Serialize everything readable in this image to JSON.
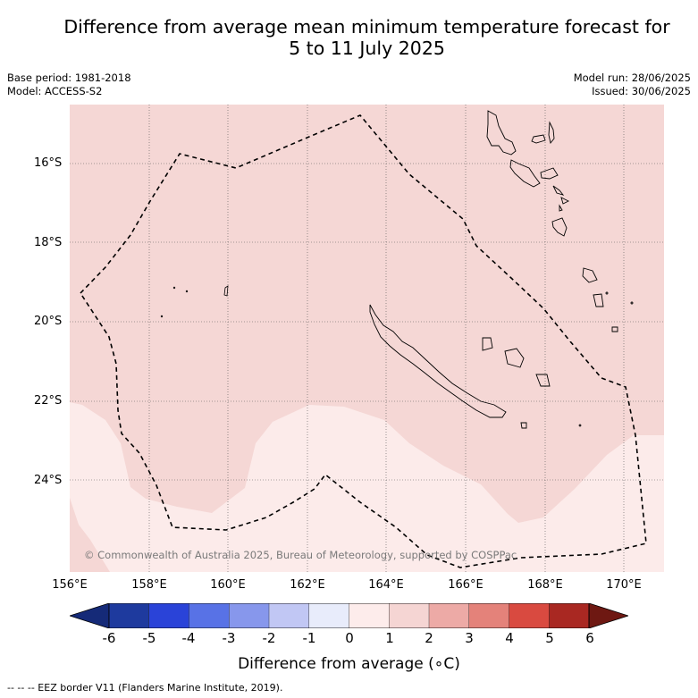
{
  "title_line1": "Difference from average mean minimum temperature forecast for",
  "title_line2": "5 to 11 July 2025",
  "base_period": "Base period: 1981-2018",
  "model": "Model: ACCESS-S2",
  "model_run": "Model run: 28/06/2025",
  "issued": "Issued: 30/06/2025",
  "lat_labels": [
    "16°S",
    "18°S",
    "20°S",
    "22°S",
    "24°S"
  ],
  "lon_labels": [
    "156°E",
    "158°E",
    "160°E",
    "162°E",
    "164°E",
    "166°E",
    "168°E",
    "170°E"
  ],
  "copyright": "© Commonwealth of Australia 2025, Bureau of Meteorology, supported by COSPPac",
  "colorbar": {
    "ticks": [
      "-6",
      "-5",
      "-4",
      "-3",
      "-2",
      "-1",
      "0",
      "1",
      "2",
      "3",
      "4",
      "5",
      "6"
    ],
    "colors": [
      "#1e3a9e",
      "#2a43d8",
      "#5872e6",
      "#8797ec",
      "#c1c7f4",
      "#e8ecfb",
      "#fdeceb",
      "#f5d5d3",
      "#edaaa6",
      "#e4827a",
      "#d94a40",
      "#a92822"
    ],
    "low_extend": "#152a78",
    "high_extend": "#6e1812",
    "label": "Difference from average (∘C)"
  },
  "footer": "--  --  -- EEZ border V11 (Flanders Marine Institute, 2019)."
}
